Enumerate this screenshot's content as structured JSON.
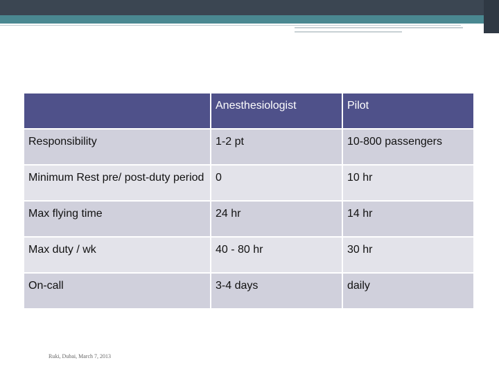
{
  "table": {
    "headers": [
      "",
      "Anesthesiologist",
      "Pilot"
    ],
    "rows": [
      [
        "Responsibility",
        "1-2 pt",
        "10-800 passengers"
      ],
      [
        "Minimum Rest pre/ post-duty period",
        "0",
        "10 hr"
      ],
      [
        "Max flying time",
        "24 hr",
        "14 hr"
      ],
      [
        "Max duty / wk",
        "40 - 80 hr",
        "30 hr"
      ],
      [
        "On-call",
        "3-4 days",
        "daily"
      ]
    ]
  },
  "footer": "Ruki, Dubai, March 7, 2013"
}
